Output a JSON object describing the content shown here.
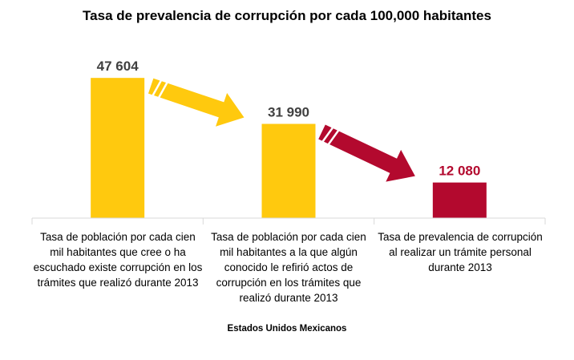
{
  "chart_data": {
    "type": "bar",
    "title": "Tasa de prevalencia de corrupción por cada  100,000 habitantes",
    "categories": [
      "Tasa de población por cada cien mil habitantes que cree o ha escuchado existe corrupción en los trámites que realizó durante 2013",
      "Tasa de población por cada cien mil habitantes a la que algún conocido le refirió actos de corrupción en los trámites que realizó durante 2013",
      "Tasa de prevalencia de corrupción al realizar un trámite personal durante 2013"
    ],
    "values": [
      47604,
      31990,
      12080
    ],
    "value_labels": [
      "47 604",
      "31 990",
      "12 080"
    ],
    "colors": [
      "#FFC90E",
      "#FFC90E",
      "#B3092E"
    ],
    "label_colors": [
      "#404040",
      "#404040",
      "#B3092E"
    ],
    "arrow_colors": [
      "#FFC90E",
      "#B3092E"
    ],
    "xlabel": "Estados Unidos Mexicanos",
    "ylabel": "",
    "ylim": [
      0,
      55000
    ],
    "grid": false,
    "legend": "none"
  }
}
